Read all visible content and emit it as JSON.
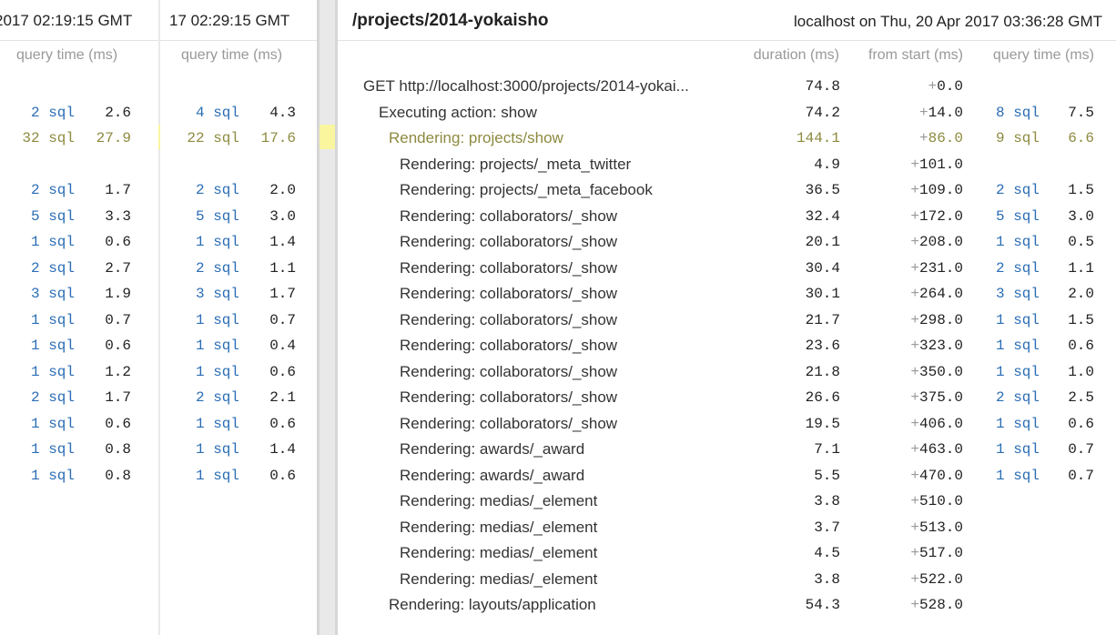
{
  "panel_a": {
    "header_time": "2017 02:19:15 GMT",
    "column_title": "query time (ms)",
    "rows": [
      {
        "sql": "",
        "time": ""
      },
      {
        "sql": "2 sql",
        "time": "2.6"
      },
      {
        "sql": "32 sql",
        "time": "27.9"
      },
      {
        "sql": "",
        "time": ""
      },
      {
        "sql": "2 sql",
        "time": "1.7"
      },
      {
        "sql": "5 sql",
        "time": "3.3"
      },
      {
        "sql": "1 sql",
        "time": "0.6"
      },
      {
        "sql": "2 sql",
        "time": "2.7"
      },
      {
        "sql": "3 sql",
        "time": "1.9"
      },
      {
        "sql": "1 sql",
        "time": "0.7"
      },
      {
        "sql": "1 sql",
        "time": "0.6"
      },
      {
        "sql": "1 sql",
        "time": "1.2"
      },
      {
        "sql": "2 sql",
        "time": "1.7"
      },
      {
        "sql": "1 sql",
        "time": "0.6"
      },
      {
        "sql": "1 sql",
        "time": "0.8"
      },
      {
        "sql": "1 sql",
        "time": "0.8"
      }
    ]
  },
  "panel_b": {
    "header_time": "17 02:29:15 GMT",
    "column_title": "query time (ms)",
    "rows": [
      {
        "sql": "",
        "time": ""
      },
      {
        "sql": "4 sql",
        "time": "4.3"
      },
      {
        "sql": "22 sql",
        "time": "17.6"
      },
      {
        "sql": "",
        "time": ""
      },
      {
        "sql": "2 sql",
        "time": "2.0"
      },
      {
        "sql": "5 sql",
        "time": "3.0"
      },
      {
        "sql": "1 sql",
        "time": "1.4"
      },
      {
        "sql": "2 sql",
        "time": "1.1"
      },
      {
        "sql": "3 sql",
        "time": "1.7"
      },
      {
        "sql": "1 sql",
        "time": "0.7"
      },
      {
        "sql": "1 sql",
        "time": "0.4"
      },
      {
        "sql": "1 sql",
        "time": "0.6"
      },
      {
        "sql": "2 sql",
        "time": "2.1"
      },
      {
        "sql": "1 sql",
        "time": "0.6"
      },
      {
        "sql": "1 sql",
        "time": "1.4"
      },
      {
        "sql": "1 sql",
        "time": "0.6"
      }
    ]
  },
  "main": {
    "title": "/projects/2014-yokaisho",
    "host": "localhost on Thu, 20 Apr 2017 03:36:28 GMT",
    "columns": {
      "duration": "duration (ms)",
      "from_start": "from start (ms)",
      "query_time": "query time (ms)"
    },
    "rows": [
      {
        "name": "GET http://localhost:3000/projects/2014-yokai...",
        "duration": "74.8",
        "from": "0.0",
        "sql": "",
        "qt": "",
        "level": 0
      },
      {
        "name": "Executing action: show",
        "duration": "74.2",
        "from": "14.0",
        "sql": "8 sql",
        "qt": "7.5",
        "level": 1
      },
      {
        "name": "Rendering: projects/show",
        "duration": "144.1",
        "from": "86.0",
        "sql": "9 sql",
        "qt": "6.6",
        "level": 2
      },
      {
        "name": "Rendering: projects/_meta_twitter",
        "duration": "4.9",
        "from": "101.0",
        "sql": "",
        "qt": "",
        "level": 3
      },
      {
        "name": "Rendering: projects/_meta_facebook",
        "duration": "36.5",
        "from": "109.0",
        "sql": "2 sql",
        "qt": "1.5",
        "level": 3
      },
      {
        "name": "Rendering: collaborators/_show",
        "duration": "32.4",
        "from": "172.0",
        "sql": "5 sql",
        "qt": "3.0",
        "level": 3
      },
      {
        "name": "Rendering: collaborators/_show",
        "duration": "20.1",
        "from": "208.0",
        "sql": "1 sql",
        "qt": "0.5",
        "level": 3
      },
      {
        "name": "Rendering: collaborators/_show",
        "duration": "30.4",
        "from": "231.0",
        "sql": "2 sql",
        "qt": "1.1",
        "level": 3
      },
      {
        "name": "Rendering: collaborators/_show",
        "duration": "30.1",
        "from": "264.0",
        "sql": "3 sql",
        "qt": "2.0",
        "level": 3
      },
      {
        "name": "Rendering: collaborators/_show",
        "duration": "21.7",
        "from": "298.0",
        "sql": "1 sql",
        "qt": "1.5",
        "level": 3
      },
      {
        "name": "Rendering: collaborators/_show",
        "duration": "23.6",
        "from": "323.0",
        "sql": "1 sql",
        "qt": "0.6",
        "level": 3
      },
      {
        "name": "Rendering: collaborators/_show",
        "duration": "21.8",
        "from": "350.0",
        "sql": "1 sql",
        "qt": "1.0",
        "level": 3
      },
      {
        "name": "Rendering: collaborators/_show",
        "duration": "26.6",
        "from": "375.0",
        "sql": "2 sql",
        "qt": "2.5",
        "level": 3
      },
      {
        "name": "Rendering: collaborators/_show",
        "duration": "19.5",
        "from": "406.0",
        "sql": "1 sql",
        "qt": "0.6",
        "level": 3
      },
      {
        "name": "Rendering: awards/_award",
        "duration": "7.1",
        "from": "463.0",
        "sql": "1 sql",
        "qt": "0.7",
        "level": 3
      },
      {
        "name": "Rendering: awards/_award",
        "duration": "5.5",
        "from": "470.0",
        "sql": "1 sql",
        "qt": "0.7",
        "level": 3
      },
      {
        "name": "Rendering: medias/_element",
        "duration": "3.8",
        "from": "510.0",
        "sql": "",
        "qt": "",
        "level": 3
      },
      {
        "name": "Rendering: medias/_element",
        "duration": "3.7",
        "from": "513.0",
        "sql": "",
        "qt": "",
        "level": 3
      },
      {
        "name": "Rendering: medias/_element",
        "duration": "4.5",
        "from": "517.0",
        "sql": "",
        "qt": "",
        "level": 3
      },
      {
        "name": "Rendering: medias/_element",
        "duration": "3.8",
        "from": "522.0",
        "sql": "",
        "qt": "",
        "level": 3
      },
      {
        "name": "Rendering: layouts/application",
        "duration": "54.3",
        "from": "528.0",
        "sql": "",
        "qt": "",
        "level": 2
      }
    ]
  },
  "highlight_row": 2,
  "colors": {
    "link": "#2b6db5",
    "highlight": "#faf59f",
    "muted": "#999999"
  }
}
